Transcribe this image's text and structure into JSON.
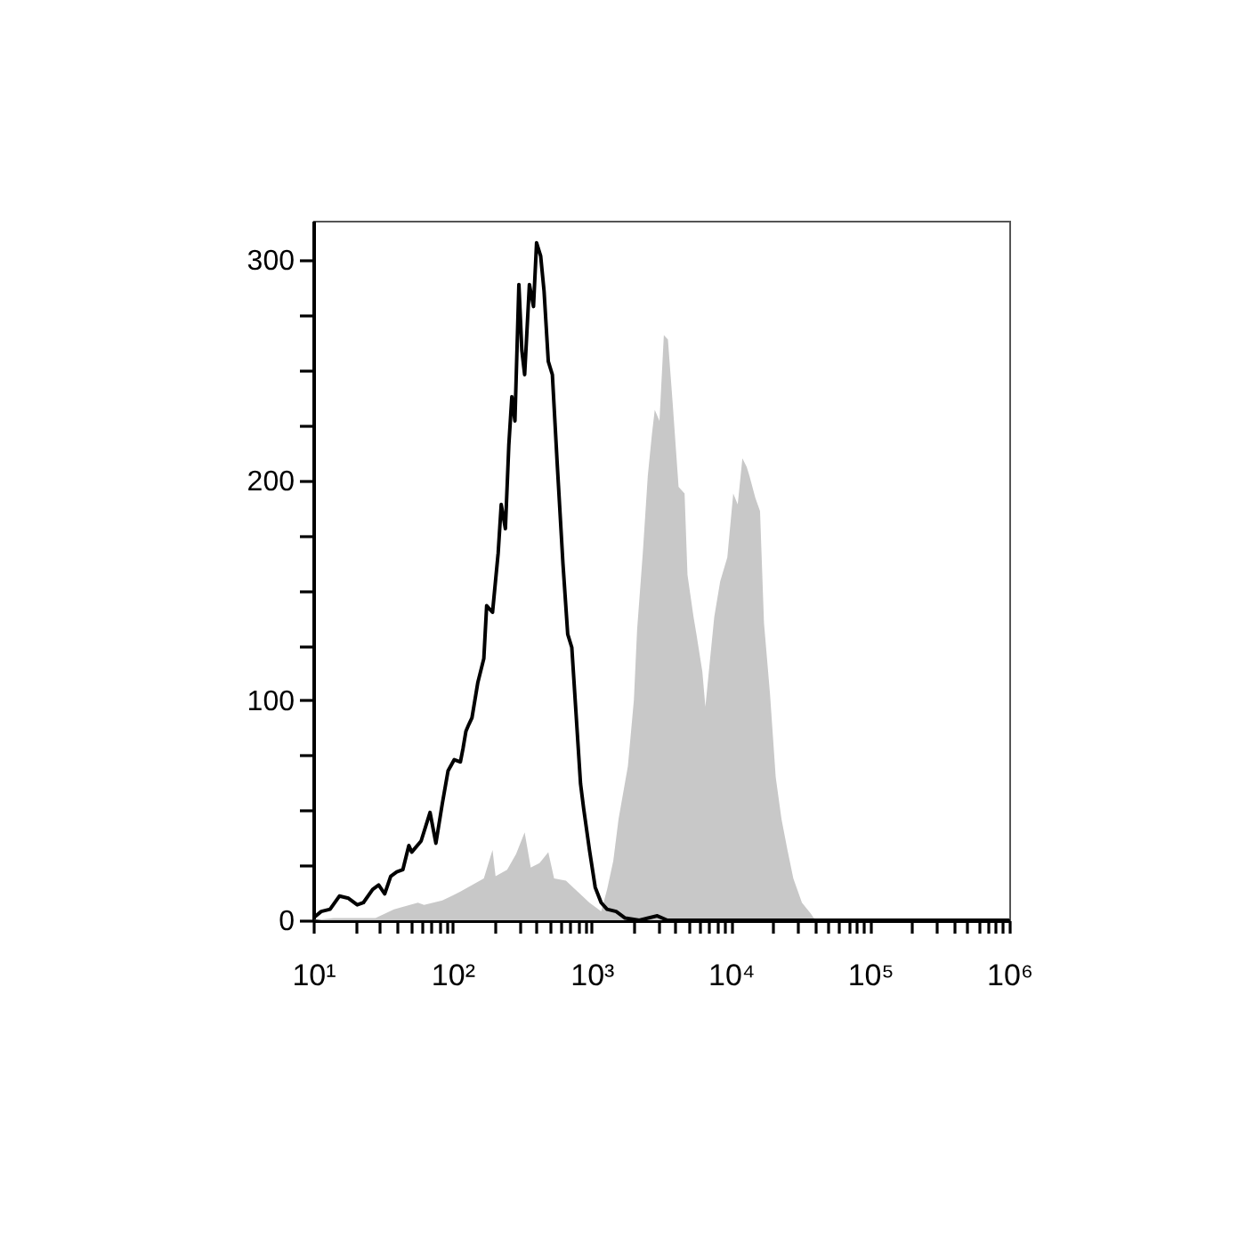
{
  "chart_data": {
    "type": "line",
    "log": "x",
    "xlim": [
      10,
      1000000
    ],
    "ylim": [
      0,
      318
    ],
    "xticks": [
      {
        "value": 10,
        "label": "10¹"
      },
      {
        "value": 20,
        "label": null
      },
      {
        "value": 30,
        "label": null
      },
      {
        "value": 40,
        "label": null
      },
      {
        "value": 50,
        "label": null
      },
      {
        "value": 60,
        "label": null
      },
      {
        "value": 70,
        "label": null
      },
      {
        "value": 80,
        "label": null
      },
      {
        "value": 90,
        "label": null
      },
      {
        "value": 100,
        "label": "10²"
      },
      {
        "value": 200,
        "label": null
      },
      {
        "value": 300,
        "label": null
      },
      {
        "value": 400,
        "label": null
      },
      {
        "value": 500,
        "label": null
      },
      {
        "value": 600,
        "label": null
      },
      {
        "value": 700,
        "label": null
      },
      {
        "value": 800,
        "label": null
      },
      {
        "value": 900,
        "label": null
      },
      {
        "value": 1000,
        "label": "10³"
      },
      {
        "value": 2000,
        "label": null
      },
      {
        "value": 3000,
        "label": null
      },
      {
        "value": 4000,
        "label": null
      },
      {
        "value": 5000,
        "label": null
      },
      {
        "value": 6000,
        "label": null
      },
      {
        "value": 7000,
        "label": null
      },
      {
        "value": 8000,
        "label": null
      },
      {
        "value": 9000,
        "label": null
      },
      {
        "value": 10000,
        "label": "10⁴"
      },
      {
        "value": 20000,
        "label": null
      },
      {
        "value": 30000,
        "label": null
      },
      {
        "value": 40000,
        "label": null
      },
      {
        "value": 50000,
        "label": null
      },
      {
        "value": 60000,
        "label": null
      },
      {
        "value": 70000,
        "label": null
      },
      {
        "value": 80000,
        "label": null
      },
      {
        "value": 90000,
        "label": null
      },
      {
        "value": 100000,
        "label": "10⁵"
      },
      {
        "value": 200000,
        "label": null
      },
      {
        "value": 300000,
        "label": null
      },
      {
        "value": 400000,
        "label": null
      },
      {
        "value": 500000,
        "label": null
      },
      {
        "value": 600000,
        "label": null
      },
      {
        "value": 700000,
        "label": null
      },
      {
        "value": 800000,
        "label": null
      },
      {
        "value": 900000,
        "label": null
      },
      {
        "value": 1000000,
        "label": "10⁶"
      }
    ],
    "yticks": [
      0,
      {
        "value": 25,
        "label": null
      },
      {
        "value": 50,
        "label": null
      },
      {
        "value": 75,
        "label": null
      },
      100,
      {
        "value": 125,
        "label": null
      },
      {
        "value": 150,
        "label": null
      },
      {
        "value": 175,
        "label": null
      },
      200,
      {
        "value": 225,
        "label": null
      },
      {
        "value": 250,
        "label": null
      },
      {
        "value": 275,
        "label": null
      },
      300
    ],
    "series": [
      {
        "type": "area",
        "color": "#c8c8c8",
        "x": [
          10,
          14,
          28,
          38,
          56.5,
          62.5,
          84.5,
          114,
          138,
          168,
          194,
          204,
          247,
          286,
          330,
          365,
          422,
          488,
          537,
          653,
          792,
          964,
          1170,
          1290,
          1430,
          1560,
          1820,
          2010,
          2120,
          2330,
          2530,
          2710,
          2840,
          3070,
          3300,
          3530,
          3820,
          4210,
          4650,
          4880,
          5390,
          5660,
          6240,
          6560,
          7020,
          7600,
          8380,
          9430,
          10400,
          11200,
          12100,
          13000,
          13600,
          15000,
          16200,
          17300,
          19100,
          21000,
          23100,
          25500,
          28100,
          32400,
          37500,
          39400,
          43300,
          1000000
        ],
        "values": [
          0,
          1,
          1,
          5,
          8,
          7,
          9,
          13,
          16,
          19,
          32,
          20,
          23,
          30,
          40,
          24,
          26,
          31,
          19,
          18,
          13,
          8,
          4,
          14,
          27,
          46,
          70,
          100,
          132,
          167,
          202,
          221,
          232,
          227,
          266,
          264,
          235,
          197,
          194,
          157,
          138,
          130,
          113,
          97,
          116,
          138,
          154,
          165,
          194,
          189,
          210,
          206,
          202,
          192,
          186,
          135,
          103,
          65,
          46,
          32,
          19,
          8,
          3,
          1,
          0,
          0
        ]
      },
      {
        "color": "#000000",
        "x": [
          10,
          11.4,
          13.2,
          15.4,
          17.9,
          20.7,
          22.9,
          26.7,
          29.5,
          32.6,
          36,
          39.8,
          44,
          48.6,
          51,
          59.5,
          69,
          76,
          84.5,
          93,
          103,
          114,
          119,
          125,
          131,
          138,
          152,
          168,
          176,
          194,
          213,
          224,
          240,
          254,
          267,
          281,
          300,
          315,
          330,
          357,
          382,
          402,
          430,
          455,
          488,
          522,
          565,
          622,
          673,
          720,
          832,
          875,
          964,
          1060,
          1170,
          1290,
          1500,
          1740,
          2200,
          2960,
          3500,
          1000000
        ],
        "values": [
          1,
          4,
          5,
          11,
          10,
          7,
          8,
          14,
          16,
          12,
          20,
          22,
          23,
          34,
          31,
          36,
          49,
          35,
          53,
          68,
          73,
          72,
          78,
          86,
          89,
          92,
          108,
          119,
          143,
          140,
          167,
          189,
          178,
          216,
          238,
          227,
          289,
          259,
          248,
          289,
          279,
          308,
          302,
          286,
          254,
          248,
          208,
          162,
          130,
          124,
          62,
          51,
          32,
          15,
          8,
          5,
          4,
          1,
          0,
          2,
          0,
          0
        ]
      }
    ]
  }
}
